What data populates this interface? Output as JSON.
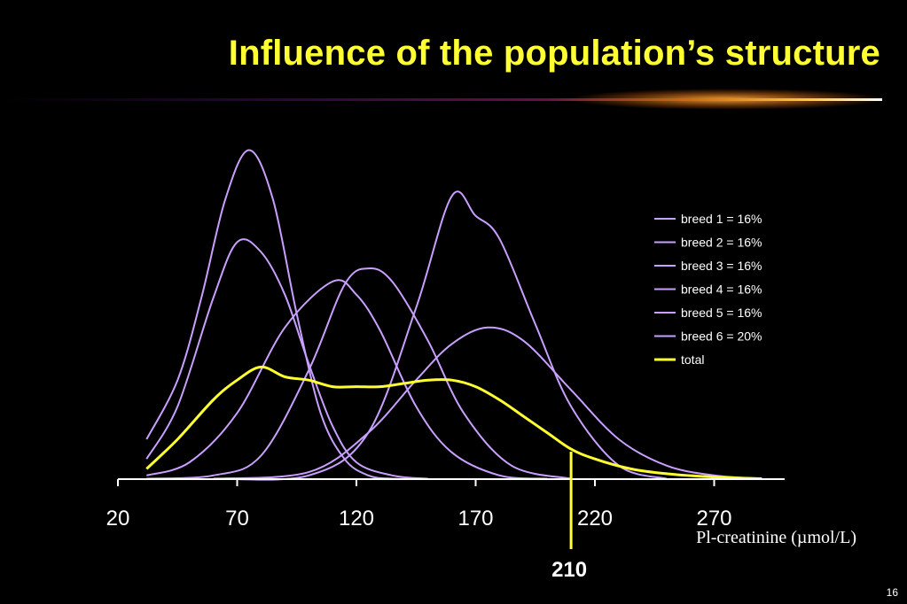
{
  "slide": {
    "title": "Influence of the population’s structure",
    "page_number": "16"
  },
  "colors": {
    "background": "#000000",
    "title": "#ffff33",
    "breed_line": "#c9a0ff",
    "total_line": "#ffff33",
    "marker_line": "#ffff33",
    "axis": "#ffffff"
  },
  "chart_data": {
    "type": "line",
    "title": "",
    "xlabel": "Pl-creatinine (µmol/L)",
    "ylabel": "",
    "xlim": [
      20,
      300
    ],
    "x_ticks": [
      20,
      70,
      120,
      170,
      220,
      270
    ],
    "x_tick_labels": [
      "20",
      "70",
      "120",
      "170",
      "220",
      "270"
    ],
    "y_axis_visible": false,
    "grid": false,
    "legend_position": "top-right",
    "marker": {
      "x": 210,
      "label": "210"
    },
    "series": [
      {
        "name": "breed 1 = 16%",
        "x": [
          32,
          45,
          55,
          65,
          75,
          85,
          95,
          105,
          115,
          125,
          135,
          150
        ],
        "y": [
          0.12,
          0.3,
          0.55,
          0.85,
          1.0,
          0.85,
          0.5,
          0.2,
          0.06,
          0.01,
          0.0,
          0.0
        ]
      },
      {
        "name": "breed 2 = 16%",
        "x": [
          32,
          45,
          60,
          70,
          80,
          90,
          100,
          110,
          120,
          135,
          150
        ],
        "y": [
          0.06,
          0.22,
          0.55,
          0.72,
          0.69,
          0.56,
          0.35,
          0.16,
          0.05,
          0.01,
          0.0
        ]
      },
      {
        "name": "breed 3 = 16%",
        "x": [
          32,
          50,
          70,
          90,
          110,
          120,
          130,
          145,
          160,
          180,
          200
        ],
        "y": [
          0.01,
          0.05,
          0.2,
          0.46,
          0.6,
          0.56,
          0.45,
          0.22,
          0.08,
          0.01,
          0.0
        ]
      },
      {
        "name": "breed 4 = 16%",
        "x": [
          32,
          60,
          80,
          100,
          115,
          125,
          135,
          150,
          165,
          185,
          210
        ],
        "y": [
          0.0,
          0.01,
          0.07,
          0.33,
          0.59,
          0.64,
          0.6,
          0.42,
          0.2,
          0.04,
          0.0
        ]
      },
      {
        "name": "breed 5 = 16%",
        "x": [
          60,
          100,
          125,
          145,
          160,
          170,
          180,
          195,
          210,
          230,
          250
        ],
        "y": [
          0.0,
          0.01,
          0.14,
          0.52,
          0.86,
          0.8,
          0.73,
          0.47,
          0.22,
          0.04,
          0.0
        ]
      },
      {
        "name": "breed 6 = 20%",
        "x": [
          60,
          100,
          125,
          145,
          160,
          175,
          190,
          210,
          230,
          250,
          270,
          290
        ],
        "y": [
          0.0,
          0.02,
          0.14,
          0.3,
          0.41,
          0.46,
          0.42,
          0.27,
          0.12,
          0.04,
          0.01,
          0.0
        ]
      },
      {
        "name": "total",
        "x": [
          32,
          45,
          60,
          70,
          80,
          90,
          100,
          110,
          120,
          130,
          140,
          150,
          160,
          170,
          180,
          190,
          200,
          210,
          220,
          235,
          250,
          270,
          290
        ],
        "y": [
          0.03,
          0.12,
          0.24,
          0.3,
          0.34,
          0.31,
          0.3,
          0.28,
          0.28,
          0.28,
          0.29,
          0.3,
          0.3,
          0.28,
          0.24,
          0.19,
          0.14,
          0.09,
          0.06,
          0.03,
          0.015,
          0.005,
          0.0
        ]
      }
    ]
  }
}
